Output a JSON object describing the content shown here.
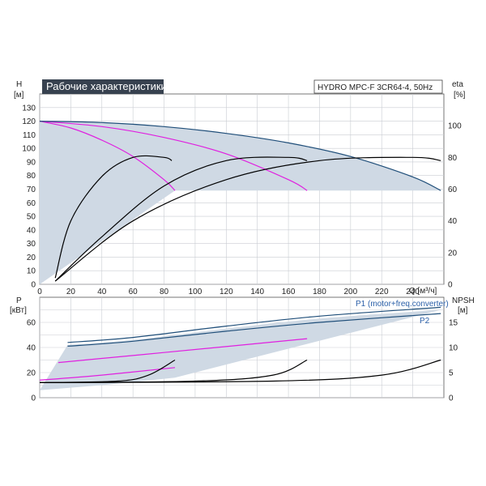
{
  "title": "Рабочие характеристики",
  "model": "HYDRO MPC-F 3CR64-4, 50Hz",
  "colors": {
    "envelope": "#cfd9e4",
    "blue_curve": "#1f4e79",
    "magenta_curve": "#e020e0",
    "black_curve": "#000000",
    "title_bg": "#37414f"
  },
  "axes": {
    "h_label": "H",
    "h_unit": "[м]",
    "eta_label": "eta",
    "eta_unit": "[%]",
    "q_label": "Q [м³/ч]",
    "p_label": "P",
    "p_unit": "[кВт]",
    "npsh_label": "NPSH",
    "npsh_unit": "[м]",
    "q_ticks": [
      "0",
      "20",
      "40",
      "60",
      "80",
      "100",
      "120",
      "140",
      "160",
      "180",
      "200",
      "220",
      "240"
    ],
    "h_ticks": [
      "0",
      "10",
      "20",
      "30",
      "40",
      "50",
      "60",
      "70",
      "80",
      "90",
      "100",
      "110",
      "120",
      "130"
    ],
    "eta_ticks": [
      "0",
      "20",
      "40",
      "60",
      "80",
      "100"
    ],
    "p_ticks": [
      "0",
      "20",
      "40",
      "60"
    ],
    "npsh_ticks": [
      "0",
      "5",
      "10",
      "15"
    ]
  },
  "series_labels": {
    "p1": "P1 (motor+freq.converter)",
    "p2": "P2"
  },
  "chart_data": [
    {
      "type": "line",
      "title": "Рабочие характеристики",
      "xlabel": "Q [м³/ч]",
      "ylabel": "H [м]",
      "y2label": "eta [%]",
      "xlim": [
        0,
        260
      ],
      "ylim": [
        0,
        140
      ],
      "y2lim": [
        0,
        120
      ],
      "series": [
        {
          "group": "head-1-pump",
          "color": "magenta",
          "x": [
            0,
            20,
            40,
            60,
            80,
            87
          ],
          "y": [
            120,
            115,
            106,
            94,
            77,
            69
          ]
        },
        {
          "group": "head-2-pumps",
          "color": "magenta",
          "x": [
            0,
            40,
            80,
            120,
            160,
            172
          ],
          "y": [
            120,
            116,
            108,
            96,
            77,
            69
          ]
        },
        {
          "group": "head-3-pumps",
          "color": "blue",
          "x": [
            0,
            40,
            80,
            120,
            160,
            200,
            240,
            258
          ],
          "y": [
            120,
            119,
            116,
            111,
            104,
            94,
            79,
            69
          ]
        },
        {
          "group": "eta-1-pump",
          "color": "black",
          "x": [
            10,
            20,
            40,
            60,
            80,
            85
          ],
          "y": [
            4,
            40,
            68,
            80,
            80,
            78
          ]
        },
        {
          "group": "eta-2-pumps",
          "color": "black",
          "x": [
            10,
            40,
            80,
            120,
            160,
            172
          ],
          "y": [
            2,
            30,
            62,
            78,
            80,
            78
          ]
        },
        {
          "group": "eta-3-pumps",
          "color": "black",
          "x": [
            10,
            60,
            120,
            180,
            240,
            258
          ],
          "y": [
            2,
            40,
            66,
            78,
            80,
            78
          ]
        }
      ]
    },
    {
      "type": "line",
      "xlabel": "",
      "ylabel": "P [кВт]",
      "y2label": "NPSH [м]",
      "xlim": [
        0,
        260
      ],
      "ylim": [
        0,
        80
      ],
      "y2lim": [
        0,
        20
      ],
      "series": [
        {
          "name": "P1 (motor+freq.converter)",
          "color": "blue",
          "x": [
            18,
            60,
            120,
            180,
            258
          ],
          "y": [
            44,
            48,
            57,
            65,
            72
          ]
        },
        {
          "name": "P2",
          "color": "blue",
          "x": [
            18,
            60,
            120,
            180,
            258
          ],
          "y": [
            41,
            45,
            53,
            60,
            67
          ]
        },
        {
          "group": "p-1-pump",
          "color": "magenta",
          "x": [
            0,
            40,
            87
          ],
          "y": [
            14,
            18,
            24
          ]
        },
        {
          "group": "p-2-pumps",
          "color": "magenta",
          "x": [
            12,
            80,
            172
          ],
          "y": [
            28,
            36,
            47
          ]
        },
        {
          "group": "npsh-1-pump",
          "color": "black",
          "x": [
            0,
            50,
            70,
            87
          ],
          "y": [
            3,
            3.3,
            4.5,
            7.5
          ]
        },
        {
          "group": "npsh-2-pumps",
          "color": "black",
          "x": [
            0,
            100,
            150,
            172
          ],
          "y": [
            3,
            3.3,
            4.5,
            7.5
          ]
        },
        {
          "group": "npsh-3-pumps",
          "color": "black",
          "x": [
            0,
            150,
            220,
            258
          ],
          "y": [
            3,
            3.3,
            4.5,
            7.5
          ]
        }
      ]
    }
  ]
}
